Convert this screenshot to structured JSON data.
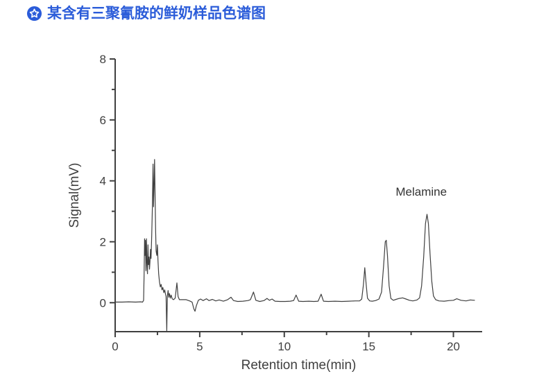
{
  "page": {
    "background": "#ffffff"
  },
  "header": {
    "icon": "star-in-circle",
    "icon_color": "#2b5cd9",
    "title": "某含有三聚氰胺的鲜奶样品色谱图",
    "title_color": "#2b5cd9"
  },
  "chart_data": {
    "type": "line",
    "title": "",
    "xlabel": "Retention time(min)",
    "ylabel": "Signal(mV)",
    "xlim": [
      0,
      21.7
    ],
    "ylim": [
      -0.95,
      8
    ],
    "x_major_ticks": [
      0,
      5,
      10,
      15,
      20
    ],
    "x_minor_ticks": [
      2.5,
      7.5,
      12.5,
      17.5
    ],
    "y_major_ticks": [
      0,
      2,
      4,
      6,
      8
    ],
    "y_minor_ticks": [
      1,
      3,
      5,
      7
    ],
    "grid": "off",
    "line_color": "#3f3f3f",
    "axis_color": "#3f3f3f",
    "annotations": [
      {
        "text": "Melamine",
        "x": 18.1,
        "y": 3.65
      }
    ],
    "labeled_peaks": [
      {
        "name": "Melamine",
        "retention_time_min": 18.45,
        "height_mV": 2.9
      }
    ],
    "main_peaks": [
      {
        "t": 2.33,
        "h": 4.7
      },
      {
        "t": 14.76,
        "h": 1.15
      },
      {
        "t": 16.03,
        "h": 2.05
      },
      {
        "t": 18.45,
        "h": 2.9
      }
    ],
    "series": [
      {
        "name": "chromatogram",
        "points": [
          [
            0,
            0.02
          ],
          [
            0.4,
            0.02
          ],
          [
            0.8,
            0.03
          ],
          [
            1.2,
            0.02
          ],
          [
            1.5,
            0.03
          ],
          [
            1.62,
            0.02
          ],
          [
            1.68,
            0.08
          ],
          [
            1.71,
            0.9
          ],
          [
            1.74,
            2.1
          ],
          [
            1.76,
            1.55
          ],
          [
            1.79,
            2.05
          ],
          [
            1.82,
            1.05
          ],
          [
            1.85,
            2.1
          ],
          [
            1.88,
            1.3
          ],
          [
            1.91,
            0.95
          ],
          [
            1.94,
            1.9
          ],
          [
            1.97,
            1.25
          ],
          [
            2.0,
            1.5
          ],
          [
            2.03,
            1.1
          ],
          [
            2.06,
            1.35
          ],
          [
            2.09,
            1.75
          ],
          [
            2.12,
            1.45
          ],
          [
            2.16,
            2.2
          ],
          [
            2.2,
            3.1
          ],
          [
            2.24,
            4.55
          ],
          [
            2.27,
            3.15
          ],
          [
            2.3,
            3.9
          ],
          [
            2.33,
            4.7
          ],
          [
            2.36,
            3.6
          ],
          [
            2.39,
            2.4
          ],
          [
            2.42,
            1.7
          ],
          [
            2.46,
            1.55
          ],
          [
            2.5,
            1.9
          ],
          [
            2.53,
            1.4
          ],
          [
            2.57,
            0.95
          ],
          [
            2.62,
            0.68
          ],
          [
            2.67,
            0.52
          ],
          [
            2.72,
            0.6
          ],
          [
            2.77,
            0.42
          ],
          [
            2.82,
            0.5
          ],
          [
            2.88,
            0.33
          ],
          [
            2.93,
            0.42
          ],
          [
            2.98,
            0.28
          ],
          [
            3.01,
            0.2
          ],
          [
            3.03,
            -0.4
          ],
          [
            3.05,
            -0.92
          ],
          [
            3.07,
            -0.35
          ],
          [
            3.09,
            0.22
          ],
          [
            3.13,
            0.4
          ],
          [
            3.17,
            0.18
          ],
          [
            3.21,
            0.3
          ],
          [
            3.26,
            0.15
          ],
          [
            3.31,
            0.25
          ],
          [
            3.37,
            0.13
          ],
          [
            3.45,
            0.1
          ],
          [
            3.55,
            0.15
          ],
          [
            3.65,
            0.65
          ],
          [
            3.72,
            0.2
          ],
          [
            3.8,
            0.1
          ],
          [
            4.0,
            0.1
          ],
          [
            4.2,
            0.1
          ],
          [
            4.4,
            0.06
          ],
          [
            4.55,
            0.02
          ],
          [
            4.65,
            -0.2
          ],
          [
            4.72,
            -0.28
          ],
          [
            4.8,
            -0.1
          ],
          [
            4.92,
            0.08
          ],
          [
            5.05,
            0.12
          ],
          [
            5.2,
            0.07
          ],
          [
            5.4,
            0.13
          ],
          [
            5.55,
            0.07
          ],
          [
            5.75,
            0.11
          ],
          [
            5.95,
            0.06
          ],
          [
            6.15,
            0.09
          ],
          [
            6.4,
            0.05
          ],
          [
            6.65,
            0.1
          ],
          [
            6.85,
            0.18
          ],
          [
            7.0,
            0.07
          ],
          [
            7.25,
            0.04
          ],
          [
            7.55,
            0.05
          ],
          [
            7.85,
            0.07
          ],
          [
            8.0,
            0.1
          ],
          [
            8.18,
            0.35
          ],
          [
            8.32,
            0.08
          ],
          [
            8.55,
            0.04
          ],
          [
            8.8,
            0.07
          ],
          [
            8.98,
            0.14
          ],
          [
            9.12,
            0.08
          ],
          [
            9.28,
            0.12
          ],
          [
            9.45,
            0.05
          ],
          [
            9.75,
            0.04
          ],
          [
            10.05,
            0.04
          ],
          [
            10.35,
            0.05
          ],
          [
            10.55,
            0.07
          ],
          [
            10.7,
            0.25
          ],
          [
            10.85,
            0.05
          ],
          [
            11.1,
            0.04
          ],
          [
            11.45,
            0.05
          ],
          [
            11.75,
            0.04
          ],
          [
            12.0,
            0.05
          ],
          [
            12.18,
            0.28
          ],
          [
            12.32,
            0.05
          ],
          [
            12.6,
            0.04
          ],
          [
            13.0,
            0.05
          ],
          [
            13.4,
            0.04
          ],
          [
            13.8,
            0.05
          ],
          [
            14.2,
            0.06
          ],
          [
            14.45,
            0.06
          ],
          [
            14.58,
            0.12
          ],
          [
            14.68,
            0.6
          ],
          [
            14.76,
            1.15
          ],
          [
            14.84,
            0.6
          ],
          [
            14.92,
            0.15
          ],
          [
            15.05,
            0.06
          ],
          [
            15.2,
            0.05
          ],
          [
            15.4,
            0.07
          ],
          [
            15.6,
            0.12
          ],
          [
            15.75,
            0.35
          ],
          [
            15.87,
            1.2
          ],
          [
            15.97,
            2.0
          ],
          [
            16.03,
            2.05
          ],
          [
            16.1,
            1.55
          ],
          [
            16.2,
            0.55
          ],
          [
            16.3,
            0.14
          ],
          [
            16.45,
            0.08
          ],
          [
            16.6,
            0.11
          ],
          [
            16.8,
            0.14
          ],
          [
            17.0,
            0.16
          ],
          [
            17.2,
            0.12
          ],
          [
            17.4,
            0.08
          ],
          [
            17.6,
            0.06
          ],
          [
            17.85,
            0.09
          ],
          [
            18.0,
            0.16
          ],
          [
            18.12,
            0.55
          ],
          [
            18.24,
            1.5
          ],
          [
            18.35,
            2.6
          ],
          [
            18.44,
            2.9
          ],
          [
            18.52,
            2.6
          ],
          [
            18.62,
            1.6
          ],
          [
            18.72,
            0.7
          ],
          [
            18.82,
            0.22
          ],
          [
            18.95,
            0.1
          ],
          [
            19.15,
            0.06
          ],
          [
            19.45,
            0.05
          ],
          [
            19.75,
            0.07
          ],
          [
            20.0,
            0.08
          ],
          [
            20.2,
            0.13
          ],
          [
            20.45,
            0.08
          ],
          [
            20.75,
            0.06
          ],
          [
            21.0,
            0.09
          ],
          [
            21.25,
            0.08
          ]
        ]
      }
    ]
  }
}
